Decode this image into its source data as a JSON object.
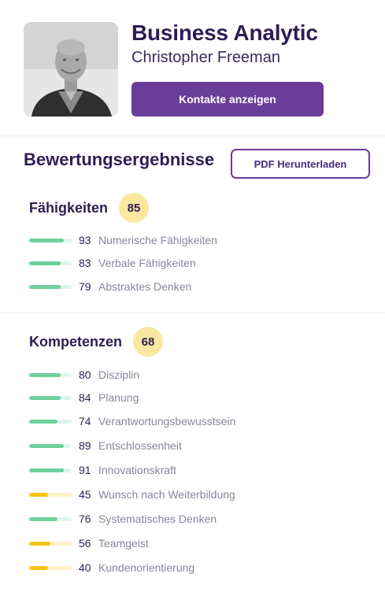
{
  "profile": {
    "company": "Business Analytic",
    "name": "Christopher Freeman",
    "contact_button": "Kontakte anzeigen"
  },
  "results": {
    "title": "Bewertungsergebnisse",
    "pdf_button": "PDF Herunterladen"
  },
  "colors": {
    "accent": "#6a3d9a",
    "bar_good": "#6fd19a",
    "bar_warn": "#f5c518",
    "badge": "#fbe7a1"
  },
  "groups": [
    {
      "title": "Fähigkeiten",
      "score": "85",
      "items": [
        {
          "value": "93",
          "label": "Numerische Fähigkeiten",
          "fill": 0.82,
          "status": "good"
        },
        {
          "value": "83",
          "label": "Verbale Fähigkeiten",
          "fill": 0.74,
          "status": "good"
        },
        {
          "value": "79",
          "label": "Abstraktes Denken",
          "fill": 0.74,
          "status": "good"
        }
      ]
    },
    {
      "title": "Kompetenzen",
      "score": "68",
      "items": [
        {
          "value": "80",
          "label": "Disziplin",
          "fill": 0.74,
          "status": "good"
        },
        {
          "value": "84",
          "label": "Planung",
          "fill": 0.74,
          "status": "good"
        },
        {
          "value": "74",
          "label": "Verantwortungsbewusstsein",
          "fill": 0.67,
          "status": "good"
        },
        {
          "value": "89",
          "label": "Entschlossenheit",
          "fill": 0.82,
          "status": "good"
        },
        {
          "value": "91",
          "label": "Innovationskraft",
          "fill": 0.82,
          "status": "good"
        },
        {
          "value": "45",
          "label": "Wunsch nach Weiterbildung",
          "fill": 0.45,
          "status": "warn"
        },
        {
          "value": "76",
          "label": "Systematisches Denken",
          "fill": 0.67,
          "status": "good"
        },
        {
          "value": "56",
          "label": "Teamgeist",
          "fill": 0.5,
          "status": "warn"
        },
        {
          "value": "40",
          "label": "Kundenorientierung",
          "fill": 0.45,
          "status": "warn"
        }
      ]
    }
  ]
}
